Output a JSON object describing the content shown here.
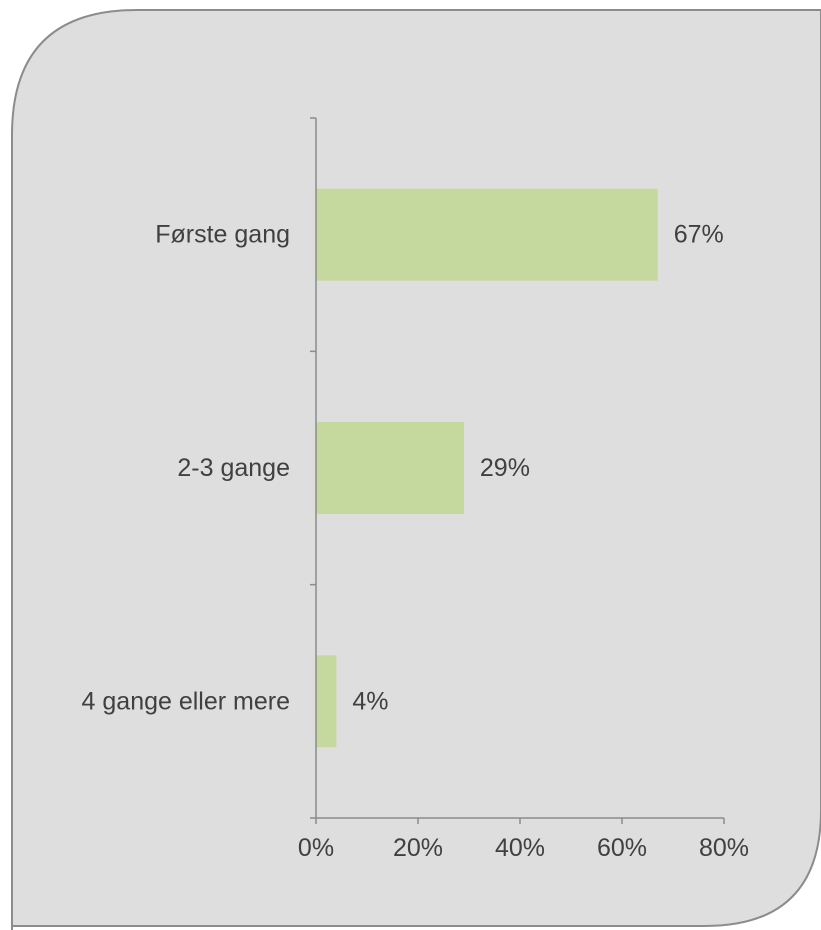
{
  "colors": {
    "panel_fill": "#dedede",
    "panel_border": "#8c8c8c",
    "bar_fill": "#c5d89d",
    "axis": "#8c8c8c",
    "text": "#404040"
  },
  "chart_data": {
    "type": "bar",
    "orientation": "horizontal",
    "categories": [
      "Første gang",
      "2-3 gange",
      "4 gange eller mere"
    ],
    "values": [
      67,
      29,
      4
    ],
    "value_labels": [
      "67%",
      "29%",
      "4%"
    ],
    "xlim": [
      0,
      80
    ],
    "x_ticks": [
      0,
      20,
      40,
      60,
      80
    ],
    "x_tick_labels": [
      "0%",
      "20%",
      "40%",
      "60%",
      "80%"
    ],
    "grid": false,
    "legend": "none"
  }
}
